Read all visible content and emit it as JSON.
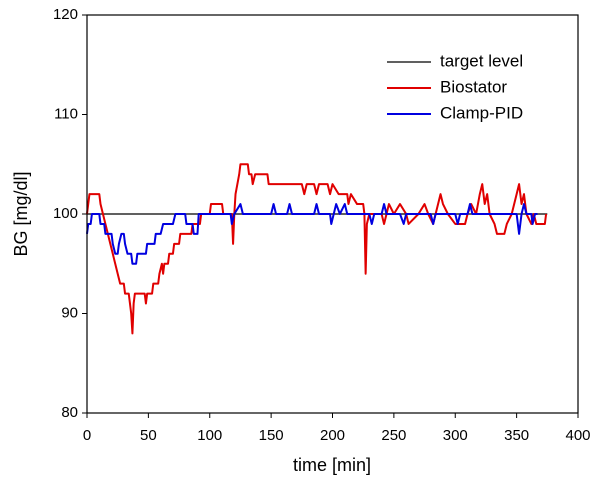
{
  "chart_data": {
    "type": "line",
    "xlabel": "time [min]",
    "ylabel": "BG [mg/dl]",
    "xlim": [
      0,
      400
    ],
    "ylim": [
      80,
      120
    ],
    "xticks": [
      0,
      50,
      100,
      150,
      200,
      250,
      300,
      350,
      400
    ],
    "yticks": [
      80,
      90,
      100,
      110,
      120
    ],
    "grid": false,
    "legend": "upper right",
    "series": [
      {
        "name": "target level",
        "color": "#000000",
        "x": [
          0,
          375
        ],
        "values": [
          100,
          100
        ]
      },
      {
        "name": "Biostator",
        "color": "#e00000",
        "x": [
          0,
          1,
          2,
          10,
          11,
          13,
          15,
          17,
          19,
          21,
          23,
          25,
          27,
          30,
          31,
          34,
          35,
          36,
          37,
          38,
          39,
          45,
          47,
          48,
          49,
          53,
          54,
          58,
          59,
          61,
          62,
          63,
          66,
          67,
          70,
          71,
          75,
          76,
          85,
          86,
          92,
          93,
          100,
          101,
          110,
          111,
          118,
          119,
          120,
          121,
          124,
          125,
          131,
          132,
          134,
          135,
          137,
          147,
          148,
          152,
          175,
          177,
          179,
          185,
          187,
          189,
          196,
          198,
          200,
          205,
          212,
          213,
          215,
          220,
          225,
          226,
          227,
          228,
          230,
          240,
          242,
          244,
          246,
          250,
          255,
          260,
          262,
          270,
          275,
          278,
          282,
          284,
          288,
          290,
          294,
          300,
          308,
          310,
          313,
          317,
          320,
          322,
          324,
          326,
          328,
          332,
          334,
          340,
          342,
          346,
          350,
          352,
          354,
          356,
          358,
          362,
          364,
          366,
          373,
          374
        ],
        "values": [
          100,
          101,
          102,
          102,
          101,
          100,
          99,
          98,
          97,
          96,
          95,
          94,
          93,
          93,
          92,
          92,
          91,
          90,
          88,
          91,
          92,
          92,
          92,
          91,
          92,
          92,
          93,
          93,
          94,
          95,
          94,
          95,
          95,
          96,
          96,
          97,
          97,
          98,
          98,
          99,
          99,
          100,
          100,
          101,
          101,
          100,
          100,
          97,
          100,
          102,
          104,
          105,
          105,
          104,
          104,
          103,
          104,
          104,
          103,
          103,
          103,
          102,
          103,
          103,
          102,
          103,
          103,
          102,
          103,
          102,
          102,
          101,
          102,
          101,
          101,
          100,
          94,
          99,
          100,
          100,
          99,
          100,
          101,
          100,
          101,
          100,
          99,
          100,
          101,
          100,
          99,
          100,
          102,
          101,
          100,
          99,
          99,
          100,
          101,
          100,
          102,
          103,
          101,
          102,
          100,
          99,
          98,
          98,
          99,
          100,
          102,
          103,
          101,
          102,
          100,
          99,
          100,
          99,
          99,
          100
        ]
      },
      {
        "name": "Clamp-PID",
        "color": "#0000e0",
        "x": [
          0,
          1,
          3,
          4,
          10,
          11,
          14,
          15,
          20,
          21,
          23,
          25,
          26,
          28,
          30,
          31,
          33,
          36,
          37,
          40,
          41,
          48,
          49,
          55,
          56,
          60,
          62,
          70,
          72,
          80,
          81,
          86,
          87,
          90,
          91,
          117,
          118,
          120,
          125,
          127,
          150,
          152,
          154,
          163,
          165,
          167,
          185,
          187,
          189,
          198,
          199,
          201,
          203,
          206,
          210,
          212,
          230,
          232,
          234,
          240,
          242,
          244,
          255,
          258,
          260,
          280,
          282,
          284,
          300,
          302,
          304,
          310,
          312,
          314,
          350,
          352,
          354,
          356,
          358,
          362,
          363,
          365,
          367
        ],
        "values": [
          98,
          99,
          99,
          100,
          100,
          99,
          99,
          98,
          98,
          97,
          96,
          96,
          97,
          98,
          98,
          97,
          96,
          96,
          95,
          95,
          96,
          96,
          97,
          97,
          98,
          98,
          99,
          99,
          100,
          100,
          99,
          99,
          98,
          98,
          100,
          100,
          99,
          100,
          101,
          100,
          100,
          101,
          100,
          100,
          101,
          100,
          100,
          101,
          100,
          100,
          99,
          100,
          101,
          100,
          101,
          100,
          100,
          99,
          100,
          100,
          101,
          100,
          100,
          99,
          100,
          100,
          99,
          100,
          100,
          99,
          100,
          100,
          101,
          100,
          100,
          98,
          100,
          101,
          100,
          100,
          99,
          100,
          100
        ]
      }
    ]
  }
}
